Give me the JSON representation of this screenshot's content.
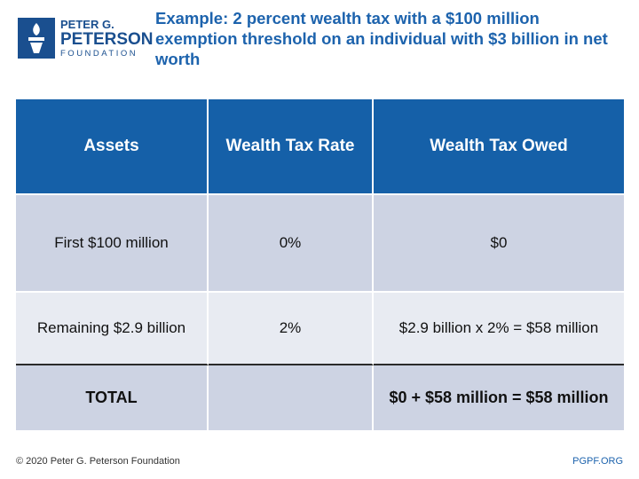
{
  "logo": {
    "line1": "PETER G.",
    "line2": "PETERSON",
    "line3": "FOUNDATION"
  },
  "title": "Example: 2 percent wealth tax with a $100 million exemption threshold on an individual with $3 billion in net worth",
  "table": {
    "header": [
      "Assets",
      "Wealth Tax Rate",
      "Wealth Tax Owed"
    ],
    "rows": [
      [
        "First $100 million",
        "0%",
        "$0"
      ],
      [
        "Remaining $2.9 billion",
        "2%",
        "$2.9 billion x 2% = $58 million"
      ]
    ],
    "total": {
      "label": "TOTAL",
      "owed": "$0 + $58 million = $58 million"
    }
  },
  "footer": {
    "copyright": "© 2020 Peter G. Peterson Foundation",
    "url": "PGPF.ORG"
  }
}
